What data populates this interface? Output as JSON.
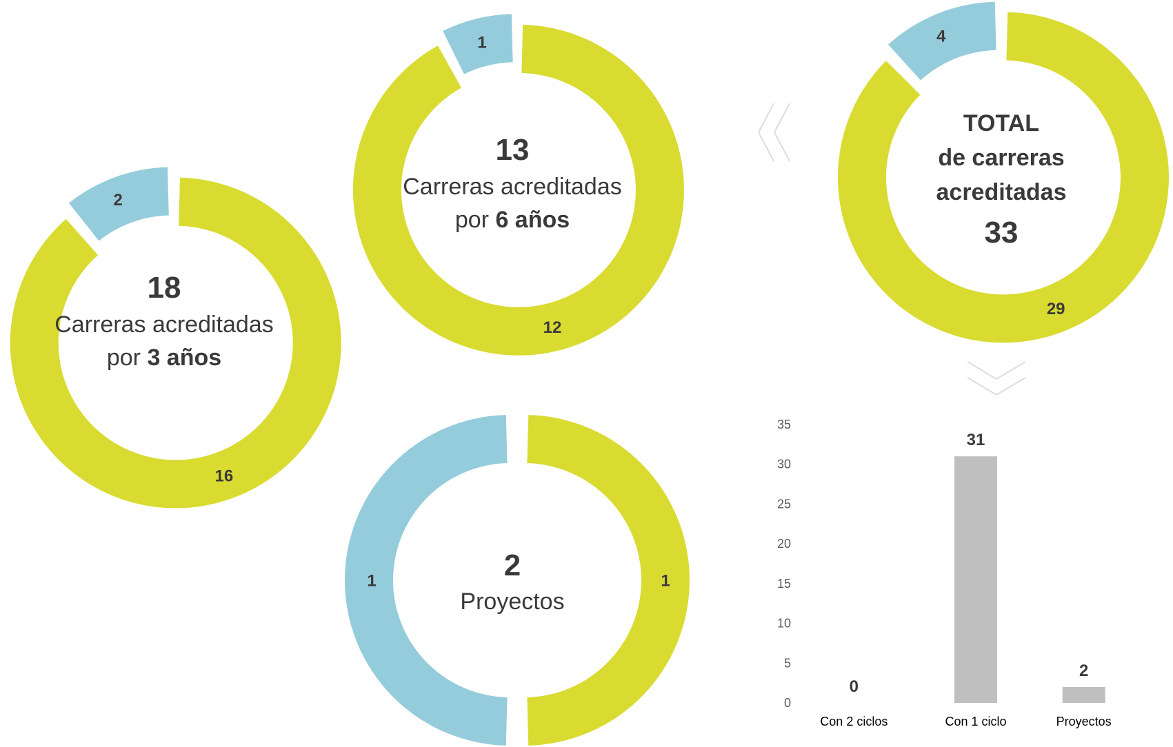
{
  "colors": {
    "green": "#d9db31",
    "blue": "#95ccdc",
    "bar": "#bfbfbf",
    "text": "#3a3a3a",
    "arrow": "#dddddd"
  },
  "chart_data": [
    {
      "type": "pie",
      "subtype": "donut",
      "categories": [
        "green",
        "blue"
      ],
      "values": [
        16,
        2
      ],
      "center": {
        "number": "18",
        "line1": "Carreras acreditadas",
        "line2_prefix": "por ",
        "line2_bold": "3 años"
      }
    },
    {
      "type": "pie",
      "subtype": "donut",
      "categories": [
        "green",
        "blue"
      ],
      "values": [
        12,
        1
      ],
      "center": {
        "number": "13",
        "line1": "Carreras acreditadas",
        "line2_prefix": "por ",
        "line2_bold": "6 años"
      }
    },
    {
      "type": "pie",
      "subtype": "donut",
      "categories": [
        "green",
        "blue"
      ],
      "values": [
        1,
        1
      ],
      "center": {
        "number": "2",
        "line1": "Proyectos"
      }
    },
    {
      "type": "pie",
      "subtype": "donut",
      "categories": [
        "green",
        "blue"
      ],
      "values": [
        29,
        4
      ],
      "center": {
        "line1": "TOTAL",
        "line2": "de carreras",
        "line3": "acreditadas",
        "number": "33"
      }
    },
    {
      "type": "bar",
      "categories": [
        "Con 2 ciclos",
        "Con 1 ciclo",
        "Proyectos"
      ],
      "values": [
        0,
        31,
        2
      ],
      "ylim": [
        0,
        35
      ],
      "yticks": [
        0,
        5,
        10,
        15,
        20,
        25,
        30,
        35
      ],
      "grid": false
    }
  ]
}
